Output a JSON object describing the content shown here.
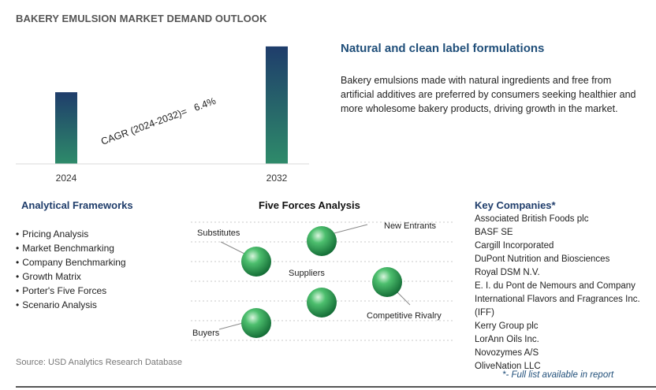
{
  "header": {
    "title": "BAKERY EMULSION MARKET DEMAND OUTLOOK"
  },
  "chart_data": {
    "type": "bar",
    "categories": [
      "2024",
      "2032"
    ],
    "values": [
      0.61,
      1.0
    ],
    "annotation": "CAGR (2024-2032)=   6.4%",
    "ylim": [
      0,
      1.1
    ],
    "grid": false,
    "colors": [
      "#2e8b6a",
      "#1f3d6b"
    ]
  },
  "feature": {
    "title": "Natural and clean label formulations",
    "body": "Bakery emulsions made with natural ingredients and free from artificial additives are preferred by consumers seeking healthier and more wholesome bakery products, driving growth in the market."
  },
  "frameworks": {
    "title": "Analytical Frameworks",
    "items": [
      "Pricing Analysis",
      "Market Benchmarking",
      "Company Benchmarking",
      "Growth Matrix",
      "Porter's Five Forces",
      "Scenario Analysis"
    ]
  },
  "five_forces": {
    "title": "Five Forces Analysis",
    "labels": {
      "substitutes": "Substitutes",
      "new_entrants": "New Entrants",
      "suppliers": "Suppliers",
      "competitive_rivalry": "Competitive Rivalry",
      "buyers": "Buyers"
    },
    "sphere_color": "#2e9e57"
  },
  "companies": {
    "title": "Key Companies*",
    "items": [
      "Associated British Foods plc",
      "BASF SE",
      "Cargill Incorporated",
      "DuPont Nutrition and Biosciences",
      "Royal DSM N.V.",
      "E. I. du Pont de Nemours and Company",
      "International Flavors and Fragrances Inc. (IFF)",
      "Kerry Group plc",
      "LorAnn Oils Inc.",
      "Novozymes A/S",
      "OliveNation LLC"
    ],
    "note": "*- Full list available in report"
  },
  "source": "Source: USD Analytics Research Database"
}
